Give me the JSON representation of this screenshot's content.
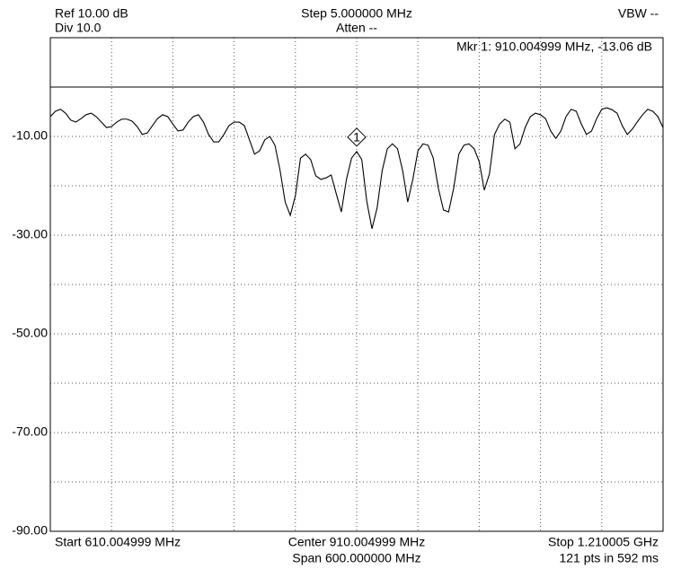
{
  "chart_data": {
    "type": "line",
    "header": {
      "ref": "Ref 10.00 dB",
      "div": "Div 10.0",
      "step": "Step 5.000000 MHz",
      "atten": "Atten --",
      "vbw": "VBW --"
    },
    "footer": {
      "start": "Start 610.004999 MHz",
      "center": "Center 910.004999 MHz",
      "span": "Span 600.000000 MHz",
      "stop": "Stop 1.210005 GHz",
      "points": "121 pts in 592 ms"
    },
    "marker": {
      "x": 910.004999,
      "y": -13.06,
      "label": "1",
      "readout": "Mkr 1: 910.004999 MHz, -13.06 dB"
    },
    "xlim": [
      610.004999,
      1210.004999
    ],
    "xticks": [
      610.004999,
      670.004999,
      730.004999,
      790.004999,
      850.004999,
      910.004999,
      970.004999,
      1030.004999,
      1090.004999,
      1150.004999,
      1210.004999
    ],
    "ylim": [
      -90,
      10
    ],
    "yticks": [
      {
        "value": -10,
        "label": "-10.00"
      },
      {
        "value": -30,
        "label": "-30.00"
      },
      {
        "value": -50,
        "label": "-50.00"
      },
      {
        "value": -70,
        "label": "-70.00"
      },
      {
        "value": -90,
        "label": "-90.00"
      }
    ],
    "ygrid": [
      0,
      -20,
      -40,
      -60,
      -80
    ],
    "limit_line": 0,
    "grid": true,
    "color": "#000000",
    "x": [
      610.004999,
      615.004999,
      620.004999,
      625.004999,
      630.004999,
      635.004999,
      640.004999,
      645.004999,
      650.004999,
      655.004999,
      660.004999,
      665.004999,
      670.004999,
      675.004999,
      680.004999,
      685.004999,
      690.004999,
      695.004999,
      700.004999,
      705.004999,
      710.004999,
      715.004999,
      720.004999,
      725.004999,
      730.004999,
      735.004999,
      740.004999,
      745.004999,
      750.004999,
      755.004999,
      760.004999,
      765.004999,
      770.004999,
      775.004999,
      780.004999,
      785.004999,
      790.004999,
      795.004999,
      800.004999,
      805.004999,
      810.004999,
      815.004999,
      820.004999,
      825.004999,
      830.004999,
      835.004999,
      840.004999,
      845.004999,
      850.004999,
      855.004999,
      860.004999,
      865.004999,
      870.004999,
      875.004999,
      880.004999,
      885.004999,
      890.004999,
      895.004999,
      900.004999,
      905.004999,
      910.004999,
      915.004999,
      920.004999,
      925.004999,
      930.004999,
      935.004999,
      940.004999,
      945.004999,
      950.004999,
      955.004999,
      960.004999,
      965.004999,
      970.004999,
      975.004999,
      980.004999,
      985.004999,
      990.004999,
      995.004999,
      1000.004999,
      1005.004999,
      1010.004999,
      1015.004999,
      1020.004999,
      1025.004999,
      1030.004999,
      1035.004999,
      1040.004999,
      1045.004999,
      1050.004999,
      1055.004999,
      1060.004999,
      1065.004999,
      1070.004999,
      1075.004999,
      1080.004999,
      1085.004999,
      1090.004999,
      1095.004999,
      1100.004999,
      1105.004999,
      1110.004999,
      1115.004999,
      1120.004999,
      1125.004999,
      1130.004999,
      1135.004999,
      1140.004999,
      1145.004999,
      1150.004999,
      1155.004999,
      1160.004999,
      1165.004999,
      1170.004999,
      1175.004999,
      1180.004999,
      1185.004999,
      1190.004999,
      1195.004999,
      1200.004999,
      1205.004999,
      1210.004999
    ],
    "values": [
      -6.0,
      -4.9,
      -4.5,
      -5.3,
      -6.7,
      -7.1,
      -6.4,
      -5.6,
      -5.3,
      -6.0,
      -7.1,
      -8.2,
      -8.0,
      -7.1,
      -6.5,
      -6.5,
      -6.9,
      -8.0,
      -9.6,
      -9.3,
      -7.8,
      -6.4,
      -5.6,
      -6.0,
      -7.5,
      -8.9,
      -8.7,
      -7.1,
      -6.0,
      -5.6,
      -7.1,
      -9.6,
      -11.1,
      -11.1,
      -9.6,
      -7.8,
      -7.1,
      -7.1,
      -7.8,
      -10.7,
      -13.6,
      -12.9,
      -10.7,
      -10.0,
      -11.8,
      -16.9,
      -23.3,
      -26.0,
      -22.0,
      -14.4,
      -13.6,
      -14.7,
      -18.0,
      -18.7,
      -18.4,
      -17.8,
      -21.6,
      -25.3,
      -18.7,
      -14.4,
      -13.06,
      -14.7,
      -23.3,
      -28.7,
      -24.5,
      -16.9,
      -12.5,
      -11.5,
      -12.5,
      -16.9,
      -23.3,
      -18.7,
      -12.9,
      -11.5,
      -11.8,
      -14.4,
      -20.5,
      -24.9,
      -25.3,
      -20.5,
      -13.6,
      -11.8,
      -11.5,
      -12.5,
      -15.1,
      -20.9,
      -17.6,
      -9.6,
      -7.5,
      -6.5,
      -7.1,
      -12.5,
      -11.5,
      -8.2,
      -6.0,
      -5.3,
      -5.6,
      -6.4,
      -8.9,
      -10.4,
      -8.9,
      -6.0,
      -4.5,
      -4.9,
      -7.5,
      -9.6,
      -8.9,
      -6.4,
      -4.5,
      -4.2,
      -4.6,
      -5.3,
      -7.8,
      -9.6,
      -8.5,
      -7.0,
      -5.6,
      -4.5,
      -4.9,
      -6.0,
      -8.2
    ]
  }
}
